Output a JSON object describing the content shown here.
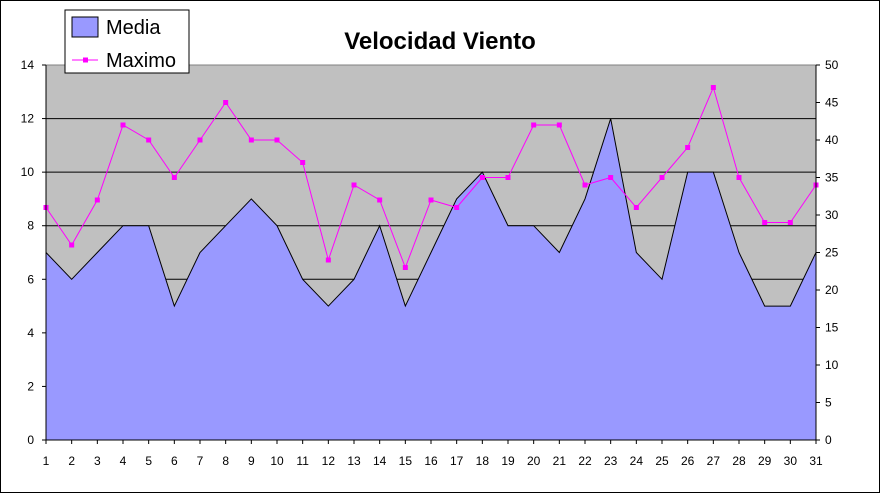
{
  "chart_data": {
    "type": "area",
    "title": "Velocidad Viento",
    "categories": [
      "1",
      "2",
      "3",
      "4",
      "5",
      "6",
      "7",
      "8",
      "9",
      "10",
      "11",
      "12",
      "13",
      "14",
      "15",
      "16",
      "17",
      "18",
      "19",
      "20",
      "21",
      "22",
      "23",
      "24",
      "25",
      "26",
      "27",
      "28",
      "29",
      "30",
      "31"
    ],
    "series": [
      {
        "name": "Media",
        "type": "area",
        "axis": "left",
        "color": "#9999ff",
        "values": [
          7,
          6,
          7,
          8,
          8,
          5,
          7,
          8,
          9,
          8,
          6,
          5,
          6,
          8,
          5,
          7,
          9,
          10,
          8,
          8,
          7,
          9,
          12,
          7,
          6,
          10,
          10,
          7,
          5,
          5,
          7
        ]
      },
      {
        "name": "Maximo",
        "type": "line",
        "axis": "right",
        "color": "#ff00ff",
        "values": [
          31,
          26,
          32,
          42,
          40,
          35,
          40,
          45,
          40,
          40,
          37,
          24,
          34,
          32,
          23,
          32,
          31,
          35,
          35,
          42,
          42,
          34,
          35,
          31,
          35,
          39,
          47,
          35,
          29,
          29,
          34
        ]
      }
    ],
    "y_left": {
      "min": 0,
      "max": 14,
      "step": 2,
      "ticks": [
        "0",
        "2",
        "4",
        "6",
        "8",
        "10",
        "12",
        "14"
      ]
    },
    "y_right": {
      "min": 0,
      "max": 50,
      "step": 5,
      "ticks": [
        "0",
        "5",
        "10",
        "15",
        "20",
        "25",
        "30",
        "35",
        "40",
        "45",
        "50"
      ]
    },
    "grid": true,
    "legend_position": "top-left",
    "plot_background": "#c0c0c0"
  }
}
